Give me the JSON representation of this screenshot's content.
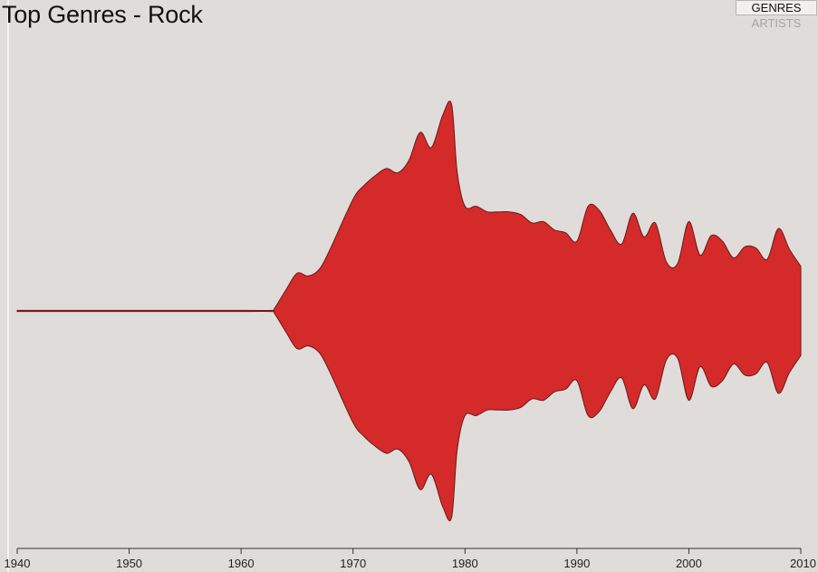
{
  "title": "Top Genres - Rock",
  "view_switch": {
    "genres_label": "GENRES",
    "artists_label": "ARTISTS",
    "selected": "GENRES"
  },
  "colors": {
    "background": "#e0dcda",
    "stream_fill": "#d42a2a",
    "stream_stroke": "#6b1a1a",
    "axis": "#333333"
  },
  "chart_data": {
    "type": "area",
    "subtype": "streamgraph",
    "title": "Top Genres - Rock",
    "xlabel": "",
    "ylabel": "",
    "xlim": [
      1940,
      2010
    ],
    "ylim": [
      -1.3,
      1.3
    ],
    "x_ticks": [
      1940,
      1950,
      1960,
      1970,
      1980,
      1990,
      2000,
      2010
    ],
    "series": [
      {
        "x": [
          1940,
          1950,
          1960,
          1962.7,
          1963,
          1964,
          1965,
          1966,
          1967,
          1968,
          1970,
          1971,
          1972,
          1973,
          1974,
          1975,
          1976,
          1977,
          1978,
          1978.8,
          1979.3,
          1980,
          1981,
          1982,
          1983,
          1984,
          1985,
          1986,
          1987,
          1988,
          1989,
          1990,
          1991,
          1992,
          1993,
          1994,
          1995,
          1996,
          1997,
          1998,
          1999,
          2000,
          2001,
          2002,
          2003,
          2004,
          2005,
          2006,
          2007,
          2008,
          2009,
          2010
        ],
        "values": [
          0.004,
          0.004,
          0.004,
          0.004,
          0.02,
          0.15,
          0.27,
          0.25,
          0.3,
          0.45,
          0.8,
          0.9,
          0.97,
          1.02,
          0.99,
          1.08,
          1.28,
          1.17,
          1.4,
          1.48,
          1.0,
          0.75,
          0.75,
          0.71,
          0.71,
          0.71,
          0.69,
          0.63,
          0.64,
          0.58,
          0.56,
          0.5,
          0.75,
          0.72,
          0.58,
          0.48,
          0.7,
          0.53,
          0.63,
          0.35,
          0.34,
          0.64,
          0.4,
          0.54,
          0.5,
          0.38,
          0.46,
          0.45,
          0.37,
          0.59,
          0.44,
          0.32
        ]
      }
    ]
  }
}
